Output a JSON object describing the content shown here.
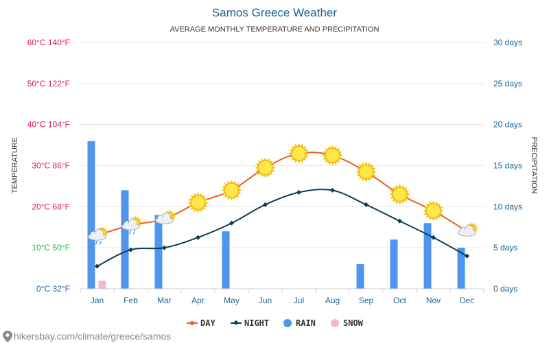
{
  "chart_data": {
    "type": "line",
    "title": "Samos Greece Weather",
    "subtitle": "AVERAGE MONTHLY TEMPERATURE AND PRECIPITATION",
    "ylabel_left": "TEMPERATURE",
    "ylabel_right": "PRECIPITATION",
    "categories": [
      "Jan",
      "Feb",
      "Mar",
      "Apr",
      "May",
      "Jun",
      "Jul",
      "Aug",
      "Sep",
      "Oct",
      "Nov",
      "Dec"
    ],
    "left_axis": {
      "ylim": [
        0,
        60
      ],
      "ticks": [
        {
          "value": 0,
          "label": "0°C 32°F",
          "color": "#1a5fb4"
        },
        {
          "value": 10,
          "label": "10°C 50°F",
          "color": "#33aa33"
        },
        {
          "value": 20,
          "label": "20°C 68°F",
          "color": "#e0174f"
        },
        {
          "value": 30,
          "label": "30°C 86°F",
          "color": "#e0174f"
        },
        {
          "value": 40,
          "label": "40°C 104°F",
          "color": "#e0174f"
        },
        {
          "value": 50,
          "label": "50°C 122°F",
          "color": "#e0174f"
        },
        {
          "value": 60,
          "label": "60°C 140°F",
          "color": "#e0174f"
        }
      ]
    },
    "right_axis": {
      "ylim": [
        0,
        30
      ],
      "ticks": [
        {
          "value": 0,
          "label": "0 days"
        },
        {
          "value": 5,
          "label": "5 days"
        },
        {
          "value": 10,
          "label": "10 days"
        },
        {
          "value": 15,
          "label": "15 days"
        },
        {
          "value": 20,
          "label": "20 days"
        },
        {
          "value": 25,
          "label": "25 days"
        },
        {
          "value": 30,
          "label": "30 days"
        }
      ]
    },
    "series": [
      {
        "name": "DAY",
        "kind": "line",
        "axis": "left",
        "color": "#f05a1a",
        "values": [
          13,
          15.5,
          17,
          21,
          24,
          29.5,
          33,
          32.5,
          28.5,
          23,
          19,
          14
        ]
      },
      {
        "name": "NIGHT",
        "kind": "line",
        "axis": "left",
        "color": "#0d3d56",
        "values": [
          5.5,
          9.5,
          10,
          12.5,
          16,
          20.5,
          23.5,
          24,
          20.5,
          16.5,
          12.5,
          8
        ]
      },
      {
        "name": "RAIN",
        "kind": "bar",
        "axis": "right",
        "color": "#4f94ef",
        "values": [
          18,
          12,
          9,
          0,
          7,
          0,
          0,
          0,
          3,
          6,
          8,
          5
        ]
      },
      {
        "name": "SNOW",
        "kind": "bar",
        "axis": "right",
        "color": "#f7b8c6",
        "values": [
          1,
          0,
          0,
          0,
          0,
          0,
          0,
          0,
          0,
          0,
          0,
          0
        ]
      }
    ],
    "weather_icons": [
      "sun-cloud-rain",
      "sun-cloud-rain",
      "sun-cloud",
      "sun",
      "sun",
      "sun",
      "sun",
      "sun",
      "sun",
      "sun",
      "sun",
      "sun-cloud"
    ],
    "grid": true,
    "legend_position": "bottom-center"
  },
  "source": "hikersbay.com/climate/greece/samos",
  "colors": {
    "title": "#1a6496",
    "right_axis_text": "#1a6496",
    "grid": "#e6e6e6"
  }
}
